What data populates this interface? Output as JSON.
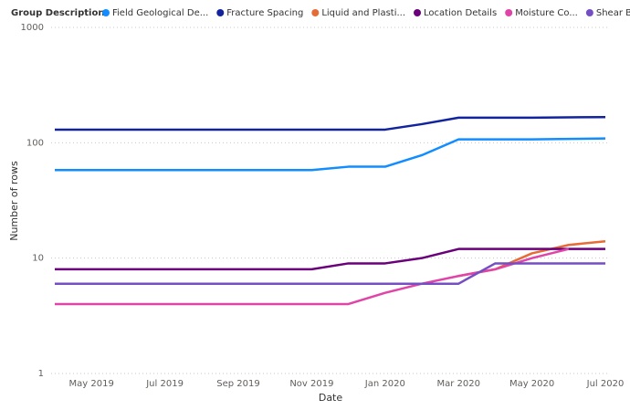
{
  "chart_data": {
    "type": "line",
    "legend_title": "Group Description",
    "x_label": "Date",
    "y_label": "Number of rows",
    "x": [
      "2019-04",
      "2019-05",
      "2019-06",
      "2019-07",
      "2019-08",
      "2019-09",
      "2019-10",
      "2019-11",
      "2019-12",
      "2020-01",
      "2020-02",
      "2020-03",
      "2020-04",
      "2020-05",
      "2020-06",
      "2020-07"
    ],
    "xlim": [
      "2019-04",
      "2020-07"
    ],
    "xticks": [
      {
        "value": "2019-05",
        "label": "May 2019"
      },
      {
        "value": "2019-07",
        "label": "Jul 2019"
      },
      {
        "value": "2019-09",
        "label": "Sep 2019"
      },
      {
        "value": "2019-11",
        "label": "Nov 2019"
      },
      {
        "value": "2020-01",
        "label": "Jan 2020"
      },
      {
        "value": "2020-03",
        "label": "Mar 2020"
      },
      {
        "value": "2020-05",
        "label": "May 2020"
      },
      {
        "value": "2020-07",
        "label": "Jul 2020"
      }
    ],
    "ylim": [
      1,
      1000
    ],
    "yticks": [
      1,
      10,
      100,
      1000
    ],
    "log_y": true,
    "grid": true,
    "series": [
      {
        "name": "Field Geological De...",
        "color": "#118DFF",
        "values": [
          58,
          58,
          58,
          58,
          58,
          58,
          58,
          58,
          62,
          62,
          78,
          107,
          107,
          107,
          108,
          109
        ]
      },
      {
        "name": "Fracture Spacing",
        "color": "#12239E",
        "values": [
          130,
          130,
          130,
          130,
          130,
          130,
          130,
          130,
          130,
          130,
          145,
          165,
          165,
          165,
          166,
          167
        ]
      },
      {
        "name": "Liquid and Plasti...",
        "color": "#E66C37",
        "values": [
          null,
          null,
          null,
          null,
          null,
          null,
          null,
          null,
          null,
          null,
          null,
          7,
          8,
          11,
          13,
          14
        ]
      },
      {
        "name": "Location Details",
        "color": "#6B007B",
        "values": [
          8,
          8,
          8,
          8,
          8,
          8,
          8,
          8,
          9,
          9,
          10,
          12,
          12,
          12,
          12,
          12
        ]
      },
      {
        "name": "Moisture Co...",
        "color": "#E044A7",
        "values": [
          4,
          4,
          4,
          4,
          4,
          4,
          4,
          4,
          4,
          5,
          6,
          7,
          8,
          10,
          12,
          null
        ]
      },
      {
        "name": "Shear Box Testi...",
        "color": "#744EC2",
        "values": [
          6,
          6,
          6,
          6,
          6,
          6,
          6,
          6,
          6,
          6,
          6,
          6,
          9,
          9,
          9,
          9
        ]
      }
    ]
  }
}
